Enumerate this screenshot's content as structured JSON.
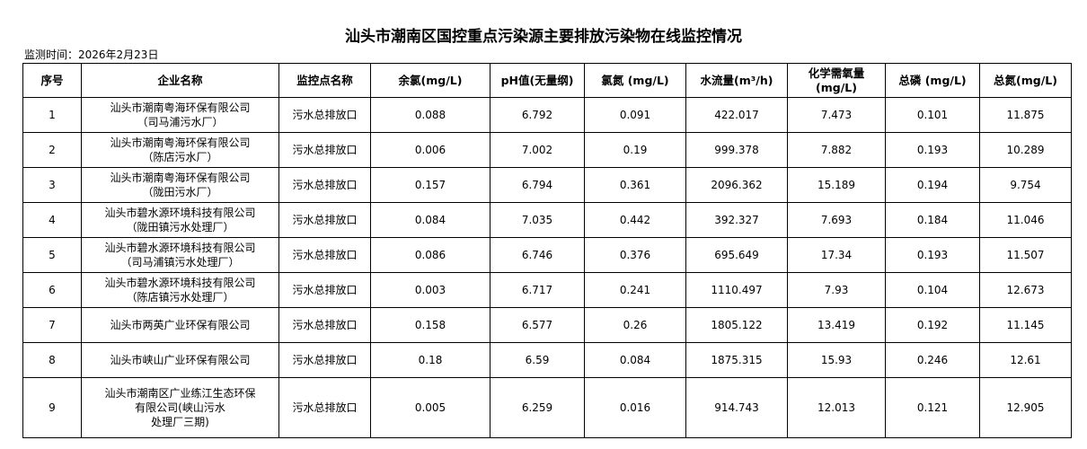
{
  "header": {
    "title": "汕头市潮南区国控重点污染源主要排放污染物在线监控情况",
    "date_line": "监测时间：2026年2月23日"
  },
  "table": {
    "columns": [
      "序号",
      "企业名称",
      "监控点名称",
      "余氯(mg/L)",
      "pH值(无量纲)",
      "氯氮 (mg/L)",
      "水流量(m³/h)",
      "化学需氧量\n(mg/L)",
      "总磷 (mg/L)",
      "总氮(mg/L)"
    ],
    "rows": [
      [
        "1",
        "汕头市潮南粤海环保有限公司\n（司马浦污水厂）",
        "污水总排放口",
        "0.088",
        "6.792",
        "0.091",
        "422.017",
        "7.473",
        "0.101",
        "11.875"
      ],
      [
        "2",
        "汕头市潮南粤海环保有限公司\n（陈店污水厂）",
        "污水总排放口",
        "0.006",
        "7.002",
        "0.19",
        "999.378",
        "7.882",
        "0.193",
        "10.289"
      ],
      [
        "3",
        "汕头市潮南粤海环保有限公司\n（陇田污水厂）",
        "污水总排放口",
        "0.157",
        "6.794",
        "0.361",
        "2096.362",
        "15.189",
        "0.194",
        "9.754"
      ],
      [
        "4",
        "汕头市碧水源环境科技有限公司\n（陇田镇污水处理厂）",
        "污水总排放口",
        "0.084",
        "7.035",
        "0.442",
        "392.327",
        "7.693",
        "0.184",
        "11.046"
      ],
      [
        "5",
        "汕头市碧水源环境科技有限公司\n（司马浦镇污水处理厂）",
        "污水总排放口",
        "0.086",
        "6.746",
        "0.376",
        "695.649",
        "17.34",
        "0.193",
        "11.507"
      ],
      [
        "6",
        "汕头市碧水源环境科技有限公司\n（陈店镇污水处理厂）",
        "污水总排放口",
        "0.003",
        "6.717",
        "0.241",
        "1110.497",
        "7.93",
        "0.104",
        "12.673"
      ],
      [
        "7",
        "汕头市两英广业环保有限公司",
        "污水总排放口",
        "0.158",
        "6.577",
        "0.26",
        "1805.122",
        "13.419",
        "0.192",
        "11.145"
      ],
      [
        "8",
        "汕头市峡山广业环保有限公司",
        "污水总排放口",
        "0.18",
        "6.59",
        "0.084",
        "1875.315",
        "15.93",
        "0.246",
        "12.61"
      ],
      [
        "9",
        "汕头市潮南区广业练江生态环保\n有限公司(峡山污水\n处理厂三期)",
        "污水总排放口",
        "0.005",
        "6.259",
        "0.016",
        "914.743",
        "12.013",
        "0.121",
        "12.905"
      ]
    ]
  }
}
